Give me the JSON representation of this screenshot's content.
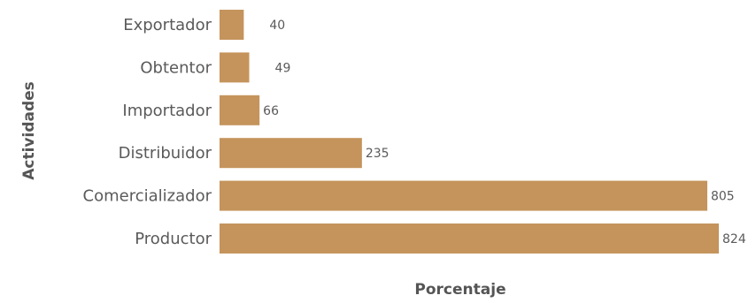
{
  "chart_data": {
    "type": "bar",
    "orientation": "horizontal",
    "categories": [
      "Exportador",
      "Obtentor",
      "Importador",
      "Distribuidor",
      "Comercializador",
      "Productor"
    ],
    "values": [
      40,
      49,
      66,
      235,
      805,
      824
    ],
    "xlabel": "Porcentaje",
    "ylabel": "Actividades",
    "xlim": [
      0,
      824
    ],
    "grid": false,
    "bar_color": "#c4945c"
  }
}
